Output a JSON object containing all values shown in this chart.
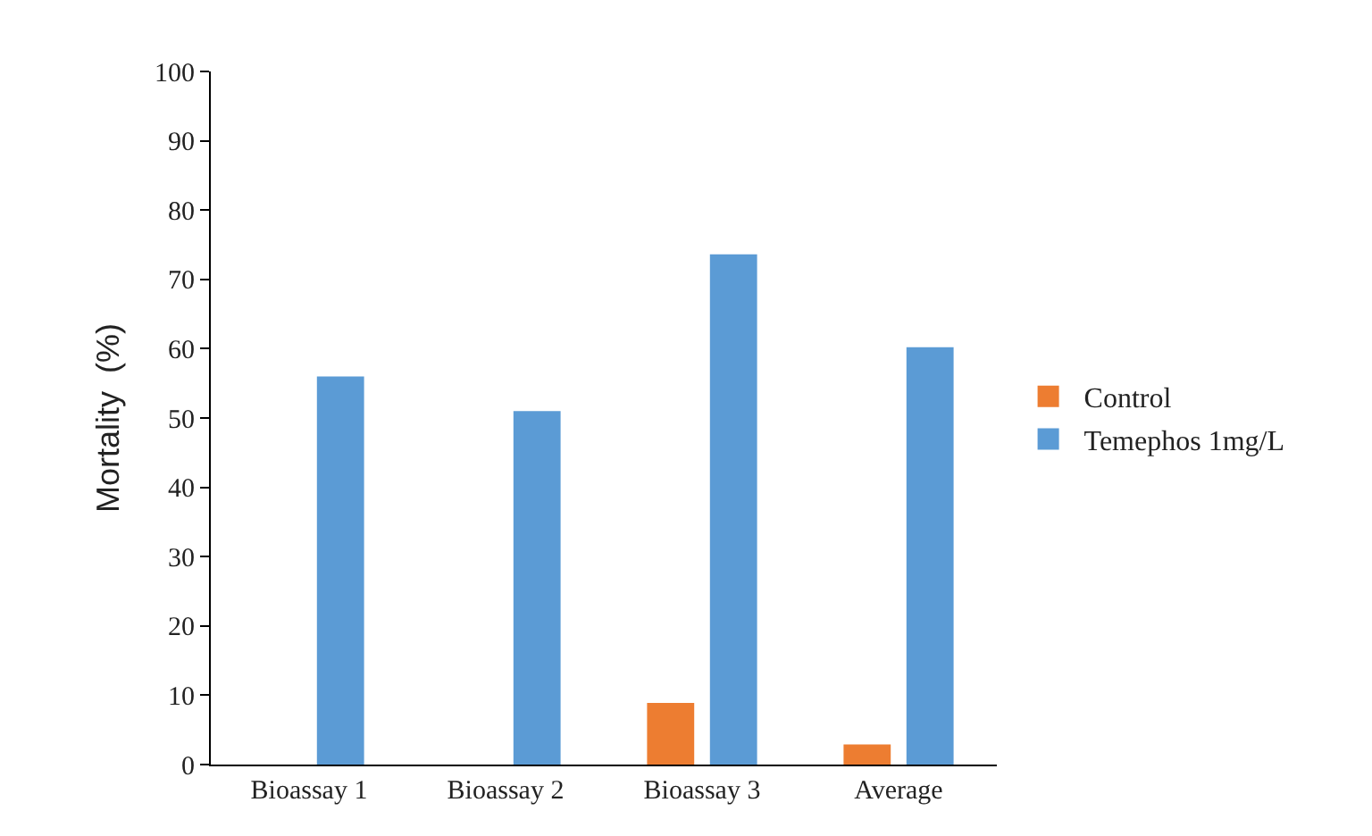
{
  "chart_data": {
    "type": "bar",
    "ylabel": "Mortality  (%)",
    "categories": [
      "Bioassay 1",
      "Bioassay 2",
      "Bioassay 3",
      "Average"
    ],
    "series": [
      {
        "name": "Control",
        "color": "#ed7d31",
        "values": [
          0,
          0,
          8.9,
          2.9
        ]
      },
      {
        "name": "Temephos 1mg/L",
        "color": "#5b9bd5",
        "values": [
          56,
          51,
          73.6,
          60.2
        ]
      }
    ],
    "ylim": [
      0,
      100
    ],
    "yticks": [
      0,
      10,
      20,
      30,
      40,
      50,
      60,
      70,
      80,
      90,
      100
    ],
    "grid": false,
    "legend": "right"
  }
}
